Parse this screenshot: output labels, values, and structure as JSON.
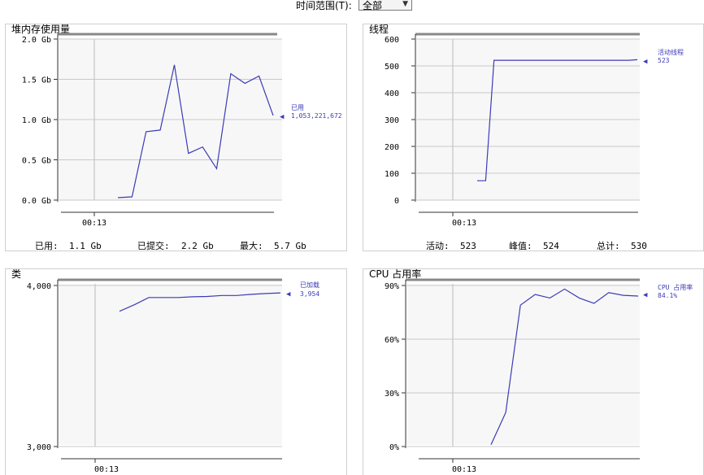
{
  "time_range": {
    "label": "时间范围(T):",
    "value": "全部"
  },
  "panels": [
    {
      "title": "堆内存使用量",
      "y_ticks": [
        "2.0 Gb",
        "1.5 Gb",
        "1.0 Gb",
        "0.5 Gb",
        "0.0 Gb"
      ],
      "x_tick": "00:13",
      "legend": {
        "name": "已用",
        "value": "1,053,221,672"
      },
      "footer": [
        {
          "label": "已用:",
          "value": "1.1 Gb"
        },
        {
          "label": "已提交:",
          "value": "2.2 Gb"
        },
        {
          "label": "最大:",
          "value": "5.7 Gb"
        }
      ]
    },
    {
      "title": "线程",
      "y_ticks": [
        "600",
        "500",
        "400",
        "300",
        "200",
        "100",
        "0"
      ],
      "x_tick": "00:13",
      "legend": {
        "name": "活动线程",
        "value": "523"
      },
      "footer": [
        {
          "label": "活动:",
          "value": "523"
        },
        {
          "label": "峰值:",
          "value": "524"
        },
        {
          "label": "总计:",
          "value": "530"
        }
      ]
    },
    {
      "title": "类",
      "y_ticks": [
        "4,000",
        "3,000"
      ],
      "x_tick": "00:13",
      "legend": {
        "name": "已加载",
        "value": "3,954"
      }
    },
    {
      "title": "CPU 占用率",
      "y_ticks": [
        "90%",
        "60%",
        "30%",
        "0%"
      ],
      "x_tick": "00:13",
      "legend": {
        "name": "CPU 占用率",
        "value": "84.1%"
      }
    }
  ],
  "chart_data": [
    {
      "type": "line",
      "title": "堆内存使用量",
      "ylim": [
        0,
        2.0
      ],
      "y_unit": "Gb",
      "series": [
        {
          "name": "已用",
          "color": "#3b3bb8",
          "values": [
            0.03,
            0.04,
            0.85,
            0.87,
            1.68,
            0.58,
            0.66,
            0.39,
            1.57,
            1.45,
            1.54,
            1.05
          ]
        }
      ]
    },
    {
      "type": "line",
      "title": "线程",
      "ylim": [
        0,
        600
      ],
      "series": [
        {
          "name": "活动线程",
          "color": "#3b3bb8",
          "values": [
            72,
            72,
            521,
            521,
            521,
            521,
            521,
            521,
            521,
            521,
            521,
            521,
            521,
            521,
            521,
            521,
            521,
            521,
            521,
            523
          ]
        }
      ]
    },
    {
      "type": "line",
      "title": "类",
      "ylim": [
        3000,
        4000
      ],
      "series": [
        {
          "name": "已加载",
          "color": "#3b3bb8",
          "values": [
            3840,
            3880,
            3925,
            3925,
            3925,
            3930,
            3932,
            3938,
            3938,
            3945,
            3950,
            3954
          ]
        }
      ]
    },
    {
      "type": "line",
      "title": "CPU 占用率",
      "ylim": [
        0,
        90
      ],
      "y_unit": "%",
      "series": [
        {
          "name": "CPU 占用率",
          "color": "#3b3bb8",
          "values": [
            1,
            19,
            79,
            85,
            83,
            88,
            83,
            80,
            86,
            84.5,
            84.1
          ]
        }
      ]
    }
  ]
}
